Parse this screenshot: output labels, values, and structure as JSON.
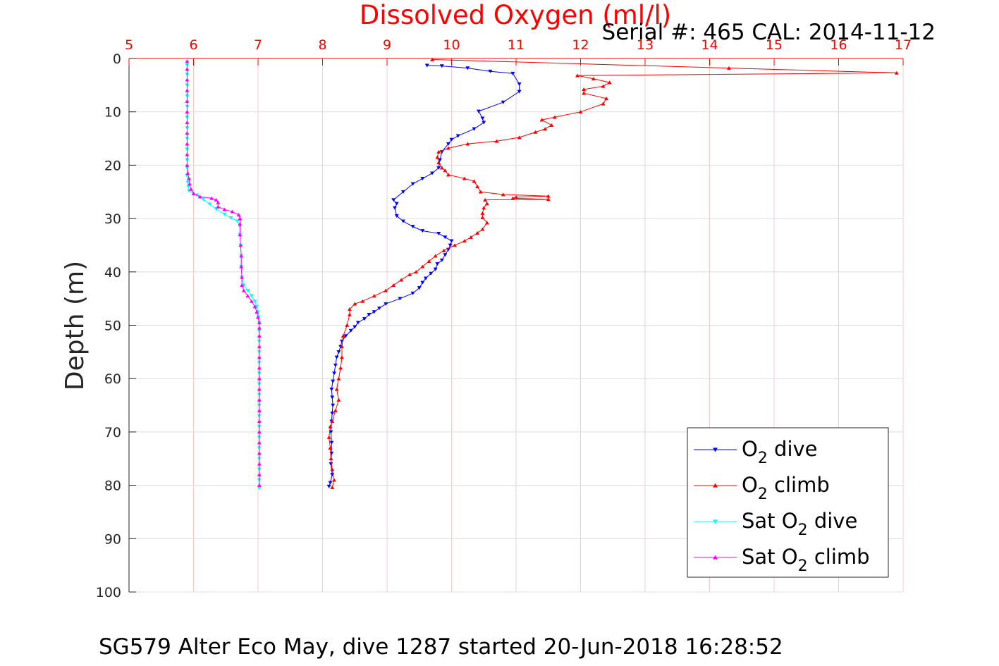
{
  "chart_data": {
    "type": "line",
    "title": "Dissolved Oxygen (ml/l)",
    "subtitle": "Serial #: 465  CAL: 2014-11-12",
    "xlabel": "",
    "ylabel": "Depth (m)",
    "caption": "SG579 Alter Eco May, dive 1287 started 20-Jun-2018 16:28:52",
    "xlim": [
      5,
      17
    ],
    "ylim": [
      0,
      100
    ],
    "y_reversed": true,
    "x_axis_location": "top",
    "xticks": [
      5,
      6,
      7,
      8,
      9,
      10,
      11,
      12,
      13,
      14,
      15,
      16,
      17
    ],
    "yticks": [
      0,
      10,
      20,
      30,
      40,
      50,
      60,
      70,
      80,
      90,
      100
    ],
    "grid": true,
    "legend_position": "bottom-right",
    "colors": {
      "x_axis": "#ff0000",
      "y_axis": "#262626",
      "grid_x": "#f4cccc",
      "grid_y": "#dcdcdc"
    },
    "series": [
      {
        "name": "O2 dive",
        "legend": {
          "prefix": "O",
          "sub": "2",
          "suffix": " dive"
        },
        "color": "#0000ff",
        "marker": "triangle-down",
        "points": [
          [
            9.62,
            1.3
          ],
          [
            9.85,
            1.4
          ],
          [
            10.25,
            1.8
          ],
          [
            10.6,
            2.4
          ],
          [
            10.95,
            2.8
          ],
          [
            11.05,
            4.8
          ],
          [
            11.05,
            6.2
          ],
          [
            10.8,
            8.2
          ],
          [
            10.42,
            9.9
          ],
          [
            10.48,
            11.2
          ],
          [
            10.5,
            12.0
          ],
          [
            10.35,
            13.2
          ],
          [
            10.1,
            14.5
          ],
          [
            10.0,
            15.2
          ],
          [
            9.95,
            16.0
          ],
          [
            9.85,
            17.5
          ],
          [
            9.82,
            19.0
          ],
          [
            9.8,
            20.5
          ],
          [
            9.7,
            21.5
          ],
          [
            9.55,
            22.5
          ],
          [
            9.4,
            23.5
          ],
          [
            9.25,
            25.0
          ],
          [
            9.1,
            26.5
          ],
          [
            9.15,
            27.2
          ],
          [
            9.12,
            28.0
          ],
          [
            9.15,
            29.5
          ],
          [
            9.25,
            30.5
          ],
          [
            9.4,
            31.5
          ],
          [
            9.55,
            32.3
          ],
          [
            9.8,
            32.8
          ],
          [
            9.9,
            33.5
          ],
          [
            10.0,
            34.2
          ],
          [
            9.98,
            35.0
          ],
          [
            9.95,
            35.8
          ],
          [
            9.9,
            36.8
          ],
          [
            9.85,
            37.8
          ],
          [
            9.78,
            38.5
          ],
          [
            9.75,
            39.5
          ],
          [
            9.68,
            40.3
          ],
          [
            9.6,
            41.2
          ],
          [
            9.55,
            42.0
          ],
          [
            9.5,
            43.0
          ],
          [
            9.4,
            44.0
          ],
          [
            9.2,
            45.0
          ],
          [
            8.98,
            46.0
          ],
          [
            8.88,
            46.8
          ],
          [
            8.8,
            47.5
          ],
          [
            8.72,
            48.0
          ],
          [
            8.65,
            48.8
          ],
          [
            8.55,
            49.5
          ],
          [
            8.5,
            50.3
          ],
          [
            8.44,
            51.0
          ],
          [
            8.36,
            52.0
          ],
          [
            8.3,
            53.0
          ],
          [
            8.28,
            54.0
          ],
          [
            8.25,
            55.0
          ],
          [
            8.22,
            56.0
          ],
          [
            8.2,
            57.5
          ],
          [
            8.18,
            59.0
          ],
          [
            8.16,
            60.5
          ],
          [
            8.14,
            62.0
          ],
          [
            8.15,
            63.5
          ],
          [
            8.16,
            65.0
          ],
          [
            8.15,
            66.5
          ],
          [
            8.14,
            68.0
          ],
          [
            8.13,
            70.0
          ],
          [
            8.14,
            72.0
          ],
          [
            8.14,
            74.0
          ],
          [
            8.13,
            76.0
          ],
          [
            8.15,
            78.0
          ],
          [
            8.12,
            79.5
          ],
          [
            8.1,
            80.2
          ]
        ]
      },
      {
        "name": "O2 climb",
        "legend": {
          "prefix": "O",
          "sub": "2",
          "suffix": " climb"
        },
        "color": "#ff0000",
        "marker": "triangle-up",
        "points": [
          [
            8.15,
            80.4
          ],
          [
            8.18,
            79.0
          ],
          [
            8.15,
            77.0
          ],
          [
            8.13,
            75.0
          ],
          [
            8.12,
            73.0
          ],
          [
            8.1,
            71.0
          ],
          [
            8.12,
            69.0
          ],
          [
            8.15,
            68.0
          ],
          [
            8.2,
            66.0
          ],
          [
            8.25,
            64.0
          ],
          [
            8.22,
            62.0
          ],
          [
            8.25,
            60.0
          ],
          [
            8.28,
            58.0
          ],
          [
            8.3,
            56.0
          ],
          [
            8.3,
            54.0
          ],
          [
            8.32,
            52.0
          ],
          [
            8.38,
            50.0
          ],
          [
            8.42,
            48.0
          ],
          [
            8.42,
            47.0
          ],
          [
            8.5,
            46.0
          ],
          [
            8.62,
            45.5
          ],
          [
            8.8,
            44.5
          ],
          [
            8.98,
            43.5
          ],
          [
            9.1,
            42.5
          ],
          [
            9.22,
            41.5
          ],
          [
            9.35,
            40.5
          ],
          [
            9.45,
            40.0
          ],
          [
            9.55,
            39.0
          ],
          [
            9.65,
            38.0
          ],
          [
            9.75,
            37.0
          ],
          [
            9.88,
            36.0
          ],
          [
            10.05,
            35.0
          ],
          [
            10.2,
            34.2
          ],
          [
            10.3,
            33.5
          ],
          [
            10.4,
            32.7
          ],
          [
            10.48,
            32.0
          ],
          [
            10.55,
            30.8
          ],
          [
            10.48,
            29.8
          ],
          [
            10.48,
            29.0
          ],
          [
            10.5,
            28.0
          ],
          [
            10.55,
            27.2
          ],
          [
            10.52,
            26.5
          ],
          [
            11.5,
            26.4
          ],
          [
            10.95,
            26.2
          ],
          [
            11.0,
            26.0
          ],
          [
            11.5,
            25.8
          ],
          [
            10.8,
            25.5
          ],
          [
            10.45,
            25.0
          ],
          [
            10.4,
            24.0
          ],
          [
            10.35,
            23.0
          ],
          [
            10.2,
            22.5
          ],
          [
            9.95,
            21.8
          ],
          [
            9.9,
            21.0
          ],
          [
            9.85,
            20.5
          ],
          [
            9.8,
            19.5
          ],
          [
            9.78,
            18.5
          ],
          [
            9.8,
            17.5
          ],
          [
            9.95,
            16.8
          ],
          [
            10.25,
            16.0
          ],
          [
            10.7,
            15.5
          ],
          [
            11.05,
            14.8
          ],
          [
            11.3,
            13.8
          ],
          [
            11.45,
            13.2
          ],
          [
            11.55,
            12.5
          ],
          [
            11.4,
            11.5
          ],
          [
            11.6,
            11.0
          ],
          [
            12.0,
            10.0
          ],
          [
            12.35,
            8.5
          ],
          [
            12.4,
            7.5
          ],
          [
            12.05,
            6.5
          ],
          [
            12.05,
            5.8
          ],
          [
            12.35,
            5.2
          ],
          [
            12.45,
            4.5
          ],
          [
            12.2,
            3.8
          ],
          [
            11.95,
            3.2
          ],
          [
            16.9,
            2.7
          ],
          [
            14.3,
            1.8
          ],
          [
            9.7,
            0.2
          ]
        ]
      },
      {
        "name": "Sat O2 dive",
        "legend": {
          "prefix": "Sat O",
          "sub": "2",
          "suffix": " dive"
        },
        "color": "#00ffff",
        "marker": "triangle-down",
        "points": [
          [
            5.9,
            1.2
          ],
          [
            5.9,
            3.0
          ],
          [
            5.9,
            5.0
          ],
          [
            5.9,
            7.0
          ],
          [
            5.9,
            9.0
          ],
          [
            5.9,
            11.0
          ],
          [
            5.9,
            13.0
          ],
          [
            5.9,
            15.0
          ],
          [
            5.9,
            17.0
          ],
          [
            5.9,
            19.0
          ],
          [
            5.9,
            20.5
          ],
          [
            5.9,
            22.0
          ],
          [
            5.91,
            23.2
          ],
          [
            5.92,
            24.0
          ],
          [
            5.93,
            24.8
          ],
          [
            6.05,
            25.6
          ],
          [
            6.15,
            26.4
          ],
          [
            6.25,
            27.3
          ],
          [
            6.35,
            28.2
          ],
          [
            6.48,
            29.2
          ],
          [
            6.58,
            29.9
          ],
          [
            6.68,
            30.5
          ],
          [
            6.72,
            31.5
          ],
          [
            6.72,
            33.0
          ],
          [
            6.73,
            35.0
          ],
          [
            6.74,
            37.0
          ],
          [
            6.74,
            39.0
          ],
          [
            6.75,
            41.0
          ],
          [
            6.78,
            42.5
          ],
          [
            6.84,
            43.5
          ],
          [
            6.9,
            44.5
          ],
          [
            6.95,
            45.5
          ],
          [
            6.98,
            46.5
          ],
          [
            7.0,
            47.5
          ],
          [
            7.01,
            48.5
          ],
          [
            7.02,
            49.5
          ],
          [
            7.02,
            51.0
          ],
          [
            7.02,
            53.0
          ],
          [
            7.02,
            55.0
          ],
          [
            7.02,
            57.0
          ],
          [
            7.02,
            59.0
          ],
          [
            7.02,
            61.0
          ],
          [
            7.02,
            63.0
          ],
          [
            7.02,
            65.0
          ],
          [
            7.02,
            67.0
          ],
          [
            7.02,
            69.0
          ],
          [
            7.02,
            71.0
          ],
          [
            7.02,
            73.0
          ],
          [
            7.02,
            75.0
          ],
          [
            7.02,
            77.0
          ],
          [
            7.02,
            79.0
          ],
          [
            7.02,
            80.5
          ]
        ]
      },
      {
        "name": "Sat O2 climb",
        "legend": {
          "prefix": "Sat O",
          "sub": "2",
          "suffix": " climb"
        },
        "color": "#ff00ff",
        "marker": "triangle-up",
        "points": [
          [
            7.02,
            80.0
          ],
          [
            7.02,
            78.0
          ],
          [
            7.02,
            76.0
          ],
          [
            7.02,
            74.0
          ],
          [
            7.02,
            72.0
          ],
          [
            7.02,
            70.0
          ],
          [
            7.02,
            68.0
          ],
          [
            7.02,
            66.0
          ],
          [
            7.02,
            64.0
          ],
          [
            7.02,
            62.0
          ],
          [
            7.02,
            60.0
          ],
          [
            7.02,
            58.0
          ],
          [
            7.02,
            56.0
          ],
          [
            7.02,
            54.0
          ],
          [
            7.02,
            52.0
          ],
          [
            7.02,
            50.5
          ],
          [
            7.02,
            49.5
          ],
          [
            7.0,
            48.5
          ],
          [
            6.98,
            47.5
          ],
          [
            6.95,
            46.5
          ],
          [
            6.9,
            45.5
          ],
          [
            6.84,
            44.5
          ],
          [
            6.78,
            43.5
          ],
          [
            6.75,
            42.5
          ],
          [
            6.75,
            41.0
          ],
          [
            6.74,
            39.0
          ],
          [
            6.74,
            37.0
          ],
          [
            6.73,
            35.0
          ],
          [
            6.72,
            33.0
          ],
          [
            6.72,
            31.0
          ],
          [
            6.72,
            30.0
          ],
          [
            6.7,
            29.3
          ],
          [
            6.6,
            28.7
          ],
          [
            6.48,
            28.3
          ],
          [
            6.38,
            27.8
          ],
          [
            6.38,
            27.0
          ],
          [
            6.35,
            26.5
          ],
          [
            6.28,
            26.2
          ],
          [
            6.1,
            25.9
          ],
          [
            6.0,
            25.3
          ],
          [
            5.96,
            24.5
          ],
          [
            5.94,
            23.5
          ],
          [
            5.93,
            22.5
          ],
          [
            5.91,
            21.5
          ],
          [
            5.9,
            20.0
          ],
          [
            5.9,
            18.0
          ],
          [
            5.9,
            16.0
          ],
          [
            5.9,
            14.0
          ],
          [
            5.9,
            12.0
          ],
          [
            5.9,
            10.0
          ],
          [
            5.9,
            8.0
          ],
          [
            5.9,
            6.0
          ],
          [
            5.9,
            4.0
          ],
          [
            5.9,
            2.0
          ],
          [
            5.9,
            0.5
          ]
        ]
      }
    ]
  }
}
